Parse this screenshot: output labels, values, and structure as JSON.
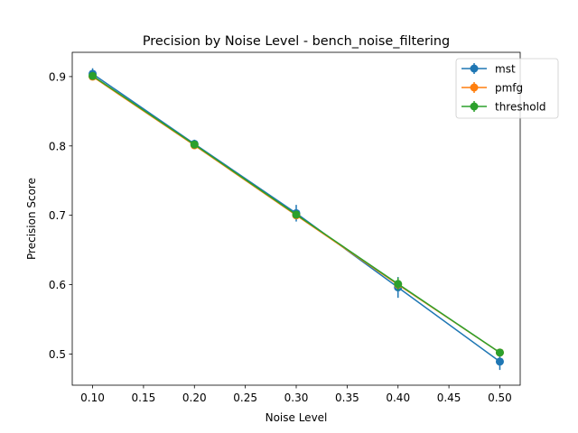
{
  "chart_data": {
    "type": "line",
    "title": "Precision by Noise Level - bench_noise_filtering",
    "xlabel": "Noise Level",
    "ylabel": "Precision Score",
    "xlim": [
      0.08,
      0.52
    ],
    "ylim": [
      0.455,
      0.935
    ],
    "xticks": [
      0.1,
      0.15,
      0.2,
      0.25,
      0.3,
      0.35,
      0.4,
      0.45,
      0.5
    ],
    "xtick_labels": [
      "0.10",
      "0.15",
      "0.20",
      "0.25",
      "0.30",
      "0.35",
      "0.40",
      "0.45",
      "0.50"
    ],
    "yticks": [
      0.5,
      0.6,
      0.7,
      0.8,
      0.9
    ],
    "ytick_labels": [
      "0.5",
      "0.6",
      "0.7",
      "0.8",
      "0.9"
    ],
    "grid": false,
    "legend_position": "top-right",
    "x": [
      0.1,
      0.2,
      0.3,
      0.4,
      0.5
    ],
    "series": [
      {
        "name": "mst",
        "color": "#1f77b4",
        "values": [
          0.904,
          0.803,
          0.703,
          0.596,
          0.489
        ],
        "errors": [
          0.008,
          0.006,
          0.012,
          0.015,
          0.012
        ]
      },
      {
        "name": "pmfg",
        "color": "#ff7f0e",
        "values": [
          0.9,
          0.801,
          0.7,
          0.6,
          0.502
        ],
        "errors": [
          0.003,
          0.003,
          0.004,
          0.004,
          0.004
        ]
      },
      {
        "name": "threshold",
        "color": "#2ca02c",
        "values": [
          0.901,
          0.802,
          0.701,
          0.601,
          0.502
        ],
        "errors": [
          0.004,
          0.004,
          0.005,
          0.009,
          0.005
        ]
      }
    ]
  }
}
